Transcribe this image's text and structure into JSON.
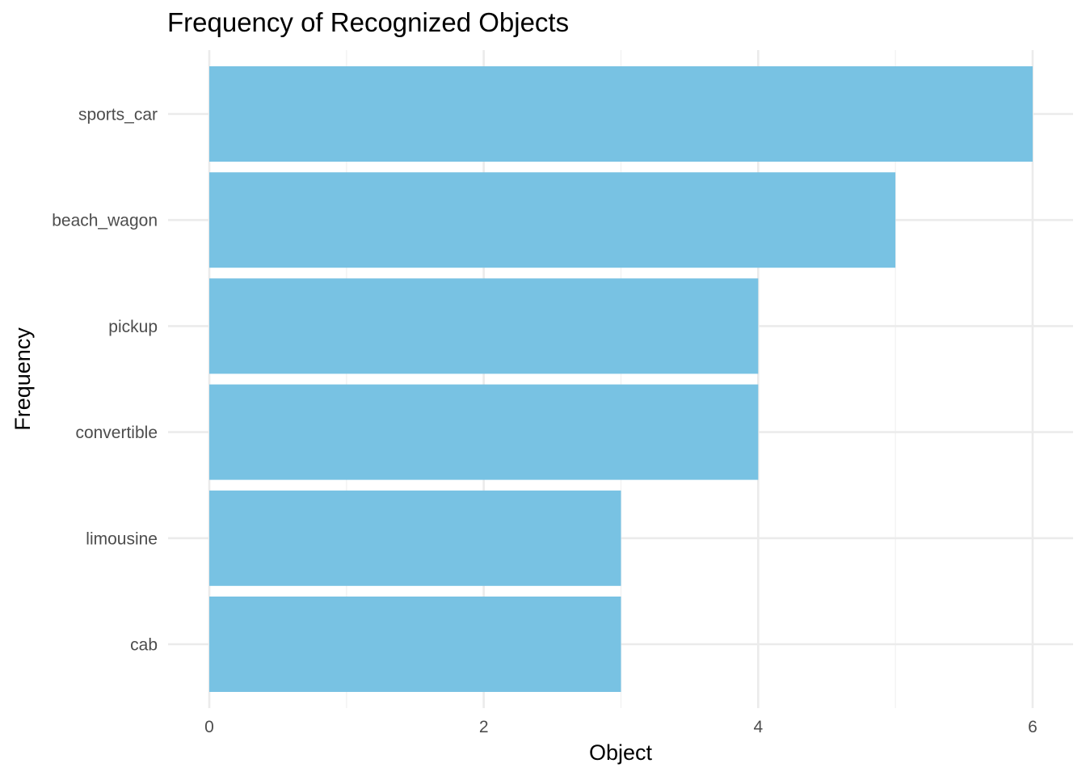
{
  "chart_data": {
    "type": "bar",
    "orientation": "horizontal",
    "title": "Frequency of Recognized Objects",
    "xlabel": "Object",
    "ylabel": "Frequency",
    "categories": [
      "sports_car",
      "beach_wagon",
      "pickup",
      "convertible",
      "limousine",
      "cab"
    ],
    "values": [
      6,
      5,
      4,
      4,
      3,
      3
    ],
    "xlim": [
      0,
      6
    ],
    "x_ticks": [
      "0",
      "2",
      "4",
      "6"
    ],
    "bar_color": "#78C2E3",
    "grid": true,
    "legend": "none"
  }
}
